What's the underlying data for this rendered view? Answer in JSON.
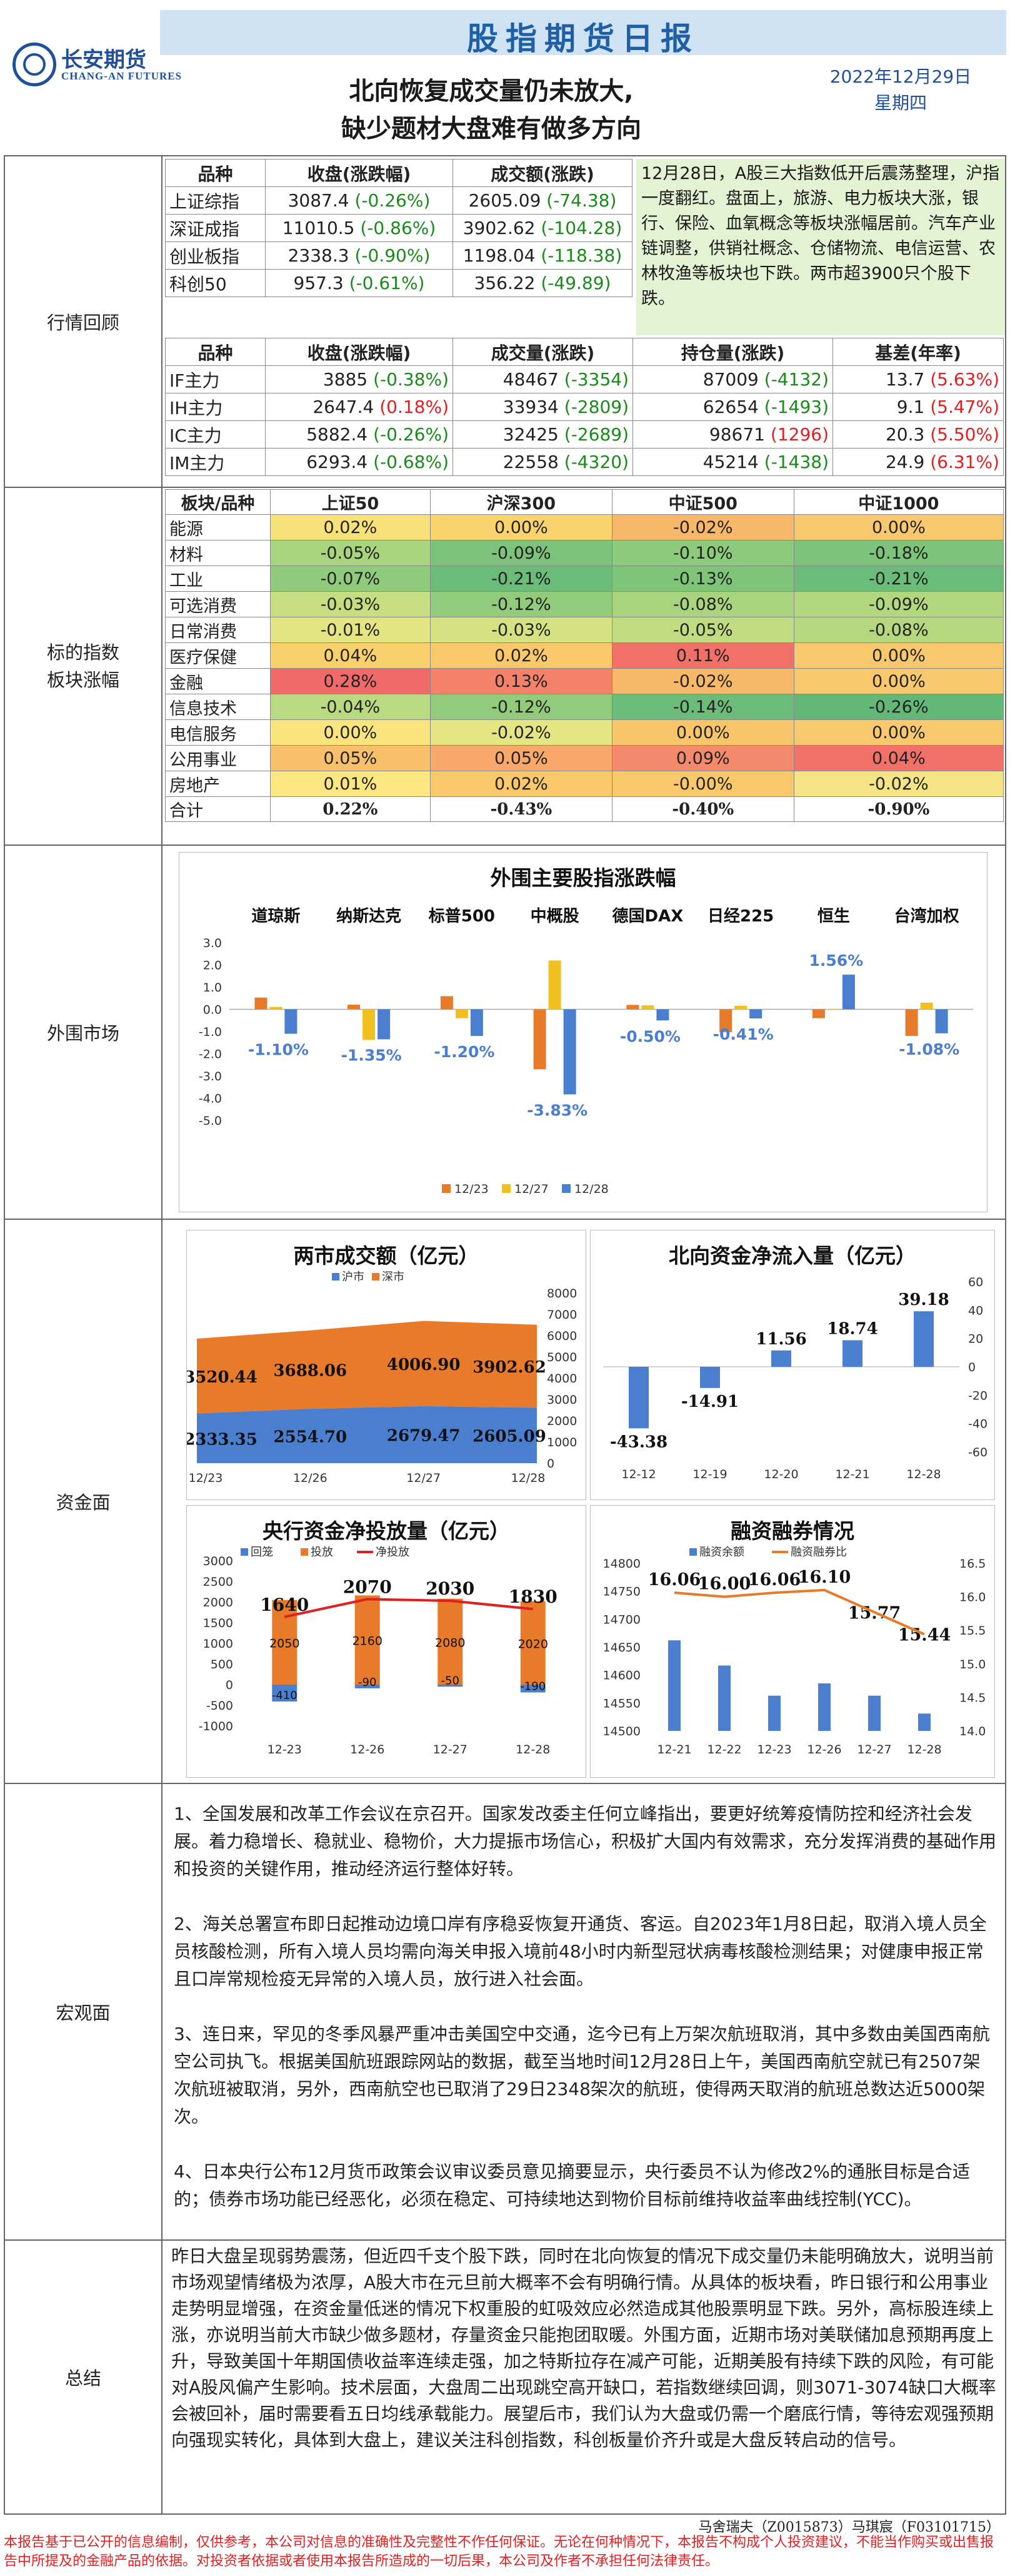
{
  "header": {
    "title": "股指期货日报",
    "logo_cn": "长安期货",
    "logo_en": "CHANG-AN FUTURES",
    "headline_1": "北向恢复成交量仍未放大,",
    "headline_2": "缺少题材大盘难有做多方向",
    "date": "2022年12月29日",
    "weekday": "星期四"
  },
  "review": {
    "label": "行情回顾",
    "index_headers": [
      "品种",
      "收盘(涨跌幅)",
      "成交额(涨跌)"
    ],
    "indices": [
      {
        "name": "上证综指",
        "close": "3087.4",
        "chg": "(-0.26%)",
        "amount": "2605.09",
        "amt_chg": "(-74.38)"
      },
      {
        "name": "深证成指",
        "close": "11010.5",
        "chg": "(-0.86%)",
        "amount": "3902.62",
        "amt_chg": "(-104.28)"
      },
      {
        "name": "创业板指",
        "close": "2338.3",
        "chg": "(-0.90%)",
        "amount": "1198.04",
        "amt_chg": "(-118.38)"
      },
      {
        "name": "科创50",
        "close": "957.3",
        "chg": "(-0.61%)",
        "amount": "356.22",
        "amt_chg": "(-49.89)"
      }
    ],
    "note": "12月28日，A股三大指数低开后震荡整理，沪指一度翻红。盘面上，旅游、电力板块大涨，银行、保险、血氧概念等板块涨幅居前。汽车产业链调整，供销社概念、仓储物流、电信运营、农林牧渔等板块也下跌。两市超3900只个股下跌。",
    "futures_headers": [
      "品种",
      "收盘(涨跌幅)",
      "成交量(涨跌)",
      "持仓量(涨跌)",
      "基差(年率)"
    ],
    "futures": [
      {
        "name": "IF主力",
        "close": "3885",
        "chg": "(-0.38%)",
        "chg_dir": "neg",
        "vol": "48467",
        "vol_chg": "(-3354)",
        "vol_dir": "neg",
        "oi": "87009",
        "oi_chg": "(-4132)",
        "oi_dir": "neg",
        "basis": "13.7",
        "basis_rate": "(5.63%)"
      },
      {
        "name": "IH主力",
        "close": "2647.4",
        "chg": "(0.18%)",
        "chg_dir": "pos",
        "vol": "33934",
        "vol_chg": "(-2809)",
        "vol_dir": "neg",
        "oi": "62654",
        "oi_chg": "(-1493)",
        "oi_dir": "neg",
        "basis": "9.1",
        "basis_rate": "(5.47%)"
      },
      {
        "name": "IC主力",
        "close": "5882.4",
        "chg": "(-0.26%)",
        "chg_dir": "neg",
        "vol": "32425",
        "vol_chg": "(-2689)",
        "vol_dir": "neg",
        "oi": "98671",
        "oi_chg": "(1296)",
        "oi_dir": "pos",
        "basis": "20.3",
        "basis_rate": "(5.50%)"
      },
      {
        "name": "IM主力",
        "close": "6293.4",
        "chg": "(-0.68%)",
        "chg_dir": "neg",
        "vol": "22558",
        "vol_chg": "(-4320)",
        "vol_dir": "neg",
        "oi": "45214",
        "oi_chg": "(-1438)",
        "oi_dir": "neg",
        "basis": "24.9",
        "basis_rate": "(6.31%)"
      }
    ]
  },
  "sectors": {
    "label_1": "标的指数",
    "label_2": "板块涨幅",
    "headers": [
      "板块/品种",
      "上证50",
      "沪深300",
      "中证500",
      "中证1000"
    ],
    "rows": [
      {
        "name": "能源",
        "v": [
          "0.02%",
          "0.00%",
          "-0.02%",
          "0.00%"
        ],
        "c": [
          "#f7e27a",
          "#f8d36e",
          "#f8b86a",
          "#f8c86e"
        ]
      },
      {
        "name": "材料",
        "v": [
          "-0.05%",
          "-0.09%",
          "-0.10%",
          "-0.18%"
        ],
        "c": [
          "#a8d47e",
          "#7cc27a",
          "#8ccb7b",
          "#7dc37a"
        ]
      },
      {
        "name": "工业",
        "v": [
          "-0.07%",
          "-0.21%",
          "-0.13%",
          "-0.21%"
        ],
        "c": [
          "#8fcb7b",
          "#6bbb79",
          "#7ec57a",
          "#6cbc79"
        ]
      },
      {
        "name": "可选消费",
        "v": [
          "-0.03%",
          "-0.12%",
          "-0.08%",
          "-0.09%"
        ],
        "c": [
          "#c6de80",
          "#91cb7b",
          "#a9d47e",
          "#b1d77f"
        ]
      },
      {
        "name": "日常消费",
        "v": [
          "-0.01%",
          "-0.03%",
          "-0.05%",
          "-0.08%"
        ],
        "c": [
          "#e3e583",
          "#d4e282",
          "#c0dc80",
          "#b5d87f"
        ]
      },
      {
        "name": "医疗保健",
        "v": [
          "0.04%",
          "0.02%",
          "0.11%",
          "0.00%"
        ],
        "c": [
          "#f8d16d",
          "#f8c86b",
          "#f17168",
          "#f8c86e"
        ]
      },
      {
        "name": "金融",
        "v": [
          "0.28%",
          "0.13%",
          "-0.02%",
          "0.00%"
        ],
        "c": [
          "#ef6a68",
          "#f4826b",
          "#f8b86a",
          "#f8c86e"
        ]
      },
      {
        "name": "信息技术",
        "v": [
          "-0.04%",
          "-0.12%",
          "-0.14%",
          "-0.26%"
        ],
        "c": [
          "#b9da80",
          "#91cb7b",
          "#6cbc79",
          "#63b878"
        ]
      },
      {
        "name": "电信服务",
        "v": [
          "0.00%",
          "-0.02%",
          "0.00%",
          "0.00%"
        ],
        "c": [
          "#fae47e",
          "#e6e583",
          "#f8c56b",
          "#f8c86e"
        ]
      },
      {
        "name": "公用事业",
        "v": [
          "0.05%",
          "0.05%",
          "0.09%",
          "0.04%"
        ],
        "c": [
          "#f8c06b",
          "#f8a86a",
          "#f48a6b",
          "#f17169"
        ]
      },
      {
        "name": "房地产",
        "v": [
          "0.01%",
          "0.02%",
          "-0.00%",
          "-0.02%"
        ],
        "c": [
          "#fbe67f",
          "#f8c86b",
          "#f8c86b",
          "#f4e483"
        ]
      }
    ],
    "total_label": "合计",
    "total": [
      "0.22%",
      "-0.43%",
      "-0.40%",
      "-0.90%"
    ]
  },
  "overseas": {
    "label": "外围市场",
    "chart_data": {
      "type": "bar",
      "title": "外围主要股指涨跌幅",
      "categories": [
        "道琼斯",
        "纳斯达克",
        "标普500",
        "中概股",
        "德国DAX",
        "日经225",
        "恒生",
        "台湾加权"
      ],
      "series": [
        {
          "name": "12/23",
          "color": "#e87b2a",
          "values": [
            0.53,
            0.21,
            0.59,
            -2.7,
            0.2,
            -1.03,
            -0.4,
            -1.2
          ]
        },
        {
          "name": "12/27",
          "color": "#f2c01e",
          "values": [
            0.11,
            -1.38,
            -0.4,
            2.2,
            0.18,
            0.16,
            0.0,
            0.3
          ]
        },
        {
          "name": "12/28",
          "color": "#4a7fd0",
          "values": [
            -1.1,
            -1.35,
            -1.2,
            -3.83,
            -0.5,
            -0.41,
            1.56,
            -1.08
          ]
        }
      ],
      "labels": [
        "-1.10%",
        "-1.35%",
        "-1.20%",
        "-3.83%",
        "-0.50%",
        "-0.41%",
        "1.56%",
        "-1.08%"
      ],
      "ylim": [
        -5,
        3
      ],
      "yticks": [
        "3.0",
        "2.0",
        "1.0",
        "0.0",
        "-1.0",
        "-2.0",
        "-3.0",
        "-4.0",
        "-5.0"
      ]
    }
  },
  "funds": {
    "label": "资金面",
    "turnover": {
      "chart_data": {
        "type": "area",
        "title": "两市成交额（亿元）",
        "categories": [
          "12/23",
          "12/26",
          "12/27",
          "12/28"
        ],
        "series": [
          {
            "name": "沪市",
            "color": "#4a7fd0",
            "values": [
              2333.35,
              2554.7,
              2679.47,
              2605.09
            ]
          },
          {
            "name": "深市",
            "color": "#e87b2a",
            "values": [
              3520.44,
              3688.06,
              4006.9,
              3902.62
            ]
          }
        ],
        "sh_labels": [
          "2333.35",
          "2554.70",
          "2679.47",
          "2605.09"
        ],
        "sz_labels": [
          "3520.44",
          "3688.06",
          "4006.90",
          "3902.62"
        ],
        "yticks": [
          "8000",
          "7000",
          "6000",
          "5000",
          "4000",
          "3000",
          "2000",
          "1000",
          "0"
        ],
        "ylim": [
          0,
          8000
        ]
      }
    },
    "northbound": {
      "chart_data": {
        "type": "bar",
        "title": "北向资金净流入量（亿元）",
        "categories": [
          "12-12",
          "12-19",
          "12-20",
          "12-21",
          "12-28"
        ],
        "values": [
          -43.38,
          -14.91,
          11.56,
          18.74,
          39.18
        ],
        "labels": [
          "-43.38",
          "-14.91",
          "11.56",
          "18.74",
          "39.18"
        ],
        "yticks": [
          "60",
          "40",
          "20",
          "0",
          "-20",
          "-40",
          "-60"
        ],
        "ylim": [
          -60,
          60
        ]
      }
    },
    "pboc": {
      "chart_data": {
        "type": "bar",
        "title": "央行资金净投放量（亿元）",
        "categories": [
          "12-23",
          "12-26",
          "12-27",
          "12-28"
        ],
        "legend": [
          "回笼",
          "投放",
          "净投放"
        ],
        "withdraw": [
          -410,
          -90,
          -50,
          -190
        ],
        "inject": [
          2050,
          2160,
          2080,
          2020
        ],
        "net": [
          1640,
          2070,
          2030,
          1830
        ],
        "withdraw_labels": [
          "-410",
          "-90",
          "-50",
          "-190"
        ],
        "inject_labels": [
          "2050",
          "2160",
          "2080",
          "2020"
        ],
        "net_labels": [
          "1640",
          "2070",
          "2030",
          "1830"
        ],
        "yticks": [
          "3000",
          "2500",
          "2000",
          "1500",
          "1000",
          "500",
          "0",
          "-500",
          "-1000"
        ],
        "ylim": [
          -1000,
          3000
        ]
      }
    },
    "margin": {
      "chart_data": {
        "type": "bar",
        "title": "融资融券情况",
        "categories": [
          "12-21",
          "12-22",
          "12-23",
          "12-26",
          "12-27",
          "12-28"
        ],
        "legend": [
          "融资余额",
          "融资融券比"
        ],
        "balance": [
          14662,
          14617,
          14563,
          14585,
          14563,
          14531
        ],
        "ratio": [
          16.06,
          16.0,
          16.06,
          16.1,
          15.77,
          15.44
        ],
        "ratio_labels": [
          "16.06",
          "16.00",
          "16.06",
          "16.10",
          "15.77",
          "15.44"
        ],
        "yticks": [
          "14800",
          "14750",
          "14700",
          "14650",
          "14600",
          "14550",
          "14500"
        ],
        "ylim": [
          14500,
          14800
        ],
        "y2ticks": [
          "16.5",
          "16.0",
          "15.5",
          "15.0",
          "14.5",
          "14.0"
        ],
        "y2lim": [
          14.0,
          16.5
        ]
      }
    }
  },
  "macro": {
    "label": "宏观面",
    "paragraphs": [
      "1、全国发展和改革工作会议在京召开。国家发改委主任何立峰指出，要更好统筹疫情防控和经济社会发展。着力稳增长、稳就业、稳物价，大力提振市场信心，积极扩大国内有效需求，充分发挥消费的基础作用和投资的关键作用，推动经济运行整体好转。",
      "2、海关总署宣布即日起推动边境口岸有序稳妥恢复开通货、客运。自2023年1月8日起，取消入境人员全员核酸检测，所有入境人员均需向海关申报入境前48小时内新型冠状病毒核酸检测结果；对健康申报正常且口岸常规检疫无异常的入境人员，放行进入社会面。",
      "3、连日来，罕见的冬季风暴严重冲击美国空中交通，迄今已有上万架次航班取消，其中多数由美国西南航空公司执飞。根据美国航班跟踪网站的数据，截至当地时间12月28日上午，美国西南航空就已有2507架次航班被取消，另外，西南航空也已取消了29日2348架次的航班，使得两天取消的航班总数达近5000架次。",
      "4、日本央行公布12月货币政策会议审议委员意见摘要显示，央行委员不认为修改2%的通胀目标是合适的；债券市场功能已经恶化，必须在稳定、可持续地达到物价目标前维持收益率曲线控制(YCC)。"
    ]
  },
  "summary": {
    "label": "总结",
    "text": "昨日大盘呈现弱势震荡，但近四千支个股下跌，同时在北向恢复的情况下成交量仍未能明确放大，说明当前市场观望情绪极为浓厚，A股大市在元旦前大概率不会有明确行情。从具体的板块看，昨日银行和公用事业走势明显增强，在资金量低迷的情况下权重股的虹吸效应必然造成其他股票明显下跌。另外，高标股连续上涨，亦说明当前大市缺少做多题材，存量资金只能抱团取暖。外围方面，近期市场对美联储加息预期再度上升，导致美国十年期国债收益率连续走强，加之特斯拉存在减产可能，近期美股有持续下跌的风险，有可能对A股风偏产生影响。技术层面，大盘周二出现跳空高开缺口，若指数继续回调，则3071-3074缺口大概率会被回补，届时需要看五日均线承载能力。展望后市，我们认为大盘或仍需一个磨底行情，等待宏观强预期向强现实转化，具体到大盘上，建议关注科创指数，科创板量价齐升或是大盘反转启动的信号。",
    "authors": "马舍瑞夫（Z0015873）马琪宸（F03101715）"
  },
  "disclaimer": "本报告基于已公开的信息编制，仅供参考，本公司对信息的准确性及完整性不作任何保证。无论在何种情况下，本报告不构成个人投资建议，不能当作购买或出售报告中所提及的金融产品的依据。对投资者依据或者使用本报告所造成的一切后果，本公司及作者不承担任何法律责任。"
}
